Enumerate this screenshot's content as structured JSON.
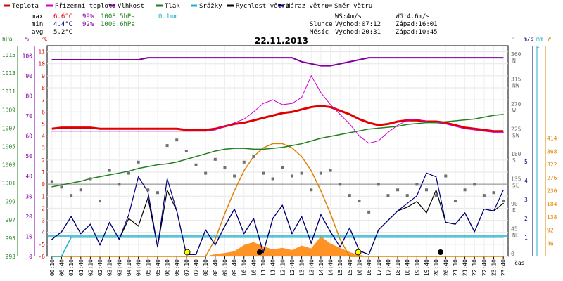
{
  "legend": [
    {
      "label": "Teplota",
      "color": "#e00000"
    },
    {
      "label": "Přízemní teplota",
      "color": "#d000d0"
    },
    {
      "label": "Vlhkost",
      "color": "#8000a0"
    },
    {
      "label": "Tlak",
      "color": "#208020"
    },
    {
      "label": "Srážky",
      "color": "#20b0c8"
    },
    {
      "label": "Rychlost větru",
      "color": "#000000"
    },
    {
      "label": "Náraz větru",
      "color": "#000080"
    },
    {
      "label": "Směr větru",
      "color": "#707070"
    }
  ],
  "stats": {
    "max_label": "max",
    "max_temp": "6.6°C",
    "max_hum": "99%",
    "max_press": "1008.5hPa",
    "max_rain": "0.1mm",
    "min_label": "min",
    "min_temp": "4.4°C",
    "min_hum": "92%",
    "min_press": "1000.6hPa",
    "avg_label": "avg",
    "avg_temp": "5.2°C"
  },
  "wind_summary": {
    "ws": "WS:4m/s",
    "wg": "WG:4.6m/s"
  },
  "sun": {
    "label": "Slunce",
    "rise": "Východ:07:12",
    "set": "Západ:16:01"
  },
  "moon": {
    "label": "Měsíc",
    "rise": "Východ:20:31",
    "set": "Západ:10:45"
  },
  "chart_data": {
    "type": "line",
    "title": "22.11.2013",
    "xlabel": "čas",
    "x_ticks": [
      "00:10",
      "00:40",
      "01:10",
      "01:40",
      "02:10",
      "02:40",
      "03:10",
      "03:40",
      "04:10",
      "04:40",
      "05:10",
      "05:40",
      "06:10",
      "06:40",
      "07:10",
      "07:40",
      "08:10",
      "08:40",
      "09:10",
      "09:40",
      "10:10",
      "10:40",
      "11:10",
      "11:40",
      "12:10",
      "12:40",
      "13:10",
      "13:40",
      "14:10",
      "14:40",
      "15:10",
      "15:40",
      "16:10",
      "16:40",
      "17:10",
      "17:40",
      "18:10",
      "18:40",
      "19:10",
      "19:40",
      "20:10",
      "20:40",
      "21:10",
      "21:40",
      "22:10",
      "22:40",
      "23:10",
      "23:40"
    ],
    "axes": {
      "hpa": {
        "unit": "hPa",
        "ticks": [
          "1015",
          "1013",
          "1011",
          "1009",
          "1007",
          "1005",
          "1003",
          "1001",
          "999",
          "997",
          "995",
          "993"
        ],
        "range": [
          993,
          1016
        ]
      },
      "pct": {
        "unit": "%",
        "ticks": [
          "100",
          "90",
          "80",
          "70",
          "60",
          "50",
          "40",
          "30",
          "20",
          "10",
          "0"
        ],
        "range": [
          0,
          105
        ]
      },
      "temp": {
        "unit": "°C",
        "ticks": [
          "11",
          "10",
          "9",
          "8",
          "7",
          "6",
          "5",
          "4",
          "3",
          "2",
          "1",
          "0",
          "-1",
          "-2",
          "-3",
          "-4",
          "-5",
          "-6"
        ],
        "range": [
          -6,
          11.5
        ]
      },
      "dir": {
        "unit": "°",
        "ticks": [
          "360",
          "315",
          "270",
          "225",
          "180",
          "135",
          "90",
          "45",
          "0"
        ],
        "labels": [
          "N",
          "NW",
          "W",
          "SW",
          "S",
          "SE",
          "E",
          "NE",
          ""
        ]
      },
      "ms": {
        "unit": "m/s",
        "ticks": [
          "5",
          "4",
          "3",
          "2",
          "1"
        ]
      },
      "mm": {
        "unit": "mm",
        "ticks": [
          "1"
        ]
      },
      "w": {
        "unit": "W",
        "ticks": [
          "414",
          "368",
          "322",
          "276",
          "230",
          "184",
          "138",
          "92",
          "46"
        ]
      }
    },
    "series": [
      {
        "name": "Teplota",
        "axis": "temp",
        "values": [
          4.6,
          4.7,
          4.7,
          4.7,
          4.7,
          4.6,
          4.6,
          4.6,
          4.6,
          4.6,
          4.6,
          4.6,
          4.6,
          4.6,
          4.5,
          4.5,
          4.5,
          4.6,
          4.8,
          5.0,
          5.1,
          5.3,
          5.5,
          5.7,
          5.9,
          6.0,
          6.2,
          6.4,
          6.5,
          6.4,
          6.1,
          5.8,
          5.4,
          5.1,
          4.9,
          5.0,
          5.2,
          5.3,
          5.3,
          5.2,
          5.2,
          5.1,
          4.9,
          4.7,
          4.6,
          4.5,
          4.4,
          4.4
        ]
      },
      {
        "name": "Přízemní teplota",
        "axis": "temp",
        "values": [
          4.4,
          4.4,
          4.4,
          4.4,
          4.4,
          4.4,
          4.4,
          4.4,
          4.4,
          4.4,
          4.4,
          4.4,
          4.4,
          4.4,
          4.4,
          4.4,
          4.4,
          4.5,
          4.8,
          5.1,
          5.4,
          6.0,
          6.7,
          7.0,
          6.6,
          6.7,
          7.2,
          9.0,
          7.6,
          6.6,
          5.8,
          5.0,
          4.0,
          3.4,
          3.6,
          4.3,
          4.9,
          5.3,
          5.4,
          5.2,
          5.1,
          5.0,
          4.8,
          4.6,
          4.5,
          4.4,
          4.3,
          4.3
        ]
      },
      {
        "name": "Vlhkost",
        "axis": "pct",
        "values": [
          98,
          98,
          98,
          98,
          98,
          98,
          98,
          98,
          98,
          98,
          99,
          99,
          99,
          99,
          99,
          99,
          99,
          99,
          99,
          99,
          99,
          99,
          99,
          99,
          99,
          99,
          97,
          96,
          95,
          95,
          96,
          97,
          98,
          99,
          99,
          99,
          99,
          99,
          99,
          99,
          99,
          99,
          99,
          99,
          99,
          99,
          99,
          99
        ]
      },
      {
        "name": "Tlak",
        "axis": "hpa",
        "values": [
          1000.6,
          1000.8,
          1001.0,
          1001.2,
          1001.5,
          1001.7,
          1001.9,
          1002.1,
          1002.3,
          1002.6,
          1002.8,
          1003.0,
          1003.1,
          1003.3,
          1003.6,
          1003.9,
          1004.2,
          1004.5,
          1004.7,
          1004.8,
          1004.8,
          1004.7,
          1004.7,
          1004.8,
          1004.9,
          1005.1,
          1005.3,
          1005.6,
          1005.9,
          1006.1,
          1006.3,
          1006.5,
          1006.7,
          1006.9,
          1007.0,
          1007.1,
          1007.2,
          1007.4,
          1007.5,
          1007.6,
          1007.6,
          1007.7,
          1007.8,
          1007.9,
          1008.0,
          1008.2,
          1008.4,
          1008.5
        ]
      },
      {
        "name": "Srážky",
        "axis": "mm",
        "values": [
          0,
          0,
          0.1,
          0.1,
          0.1,
          0.1,
          0.1,
          0.1,
          0.1,
          0.1,
          0.1,
          0.1,
          0.1,
          0.1,
          0.1,
          0.1,
          0.1,
          0.1,
          0.1,
          0.1,
          0.1,
          0.1,
          0.1,
          0.1,
          0.1,
          0.1,
          0.1,
          0.1,
          0.1,
          0.1,
          0.1,
          0.1,
          0.1,
          0.1,
          0.1,
          0.1,
          0.1,
          0.1,
          0.1,
          0.1,
          0.1,
          0.1,
          0.1,
          0.1,
          0.1,
          0.1,
          0.1,
          0.1
        ]
      },
      {
        "name": "Rychlost větru",
        "axis": "ms",
        "values": [
          0.9,
          1.3,
          2.1,
          1.2,
          1.7,
          0.6,
          1.8,
          0.9,
          2.0,
          1.6,
          3.1,
          0.5,
          3.5,
          2.4,
          0.1,
          0.1,
          1.4,
          0.6,
          1.6,
          2.5,
          1.2,
          2.0,
          0.2,
          2.0,
          2.7,
          1.2,
          2.1,
          0.7,
          2.2,
          1.3,
          0.5,
          1.5,
          0.3,
          0.1,
          1.4,
          1.9,
          2.4,
          2.6,
          2.9,
          2.3,
          3.5,
          1.8,
          1.7,
          2.3,
          1.3,
          2.5,
          2.4,
          2.8
        ]
      },
      {
        "name": "Náraz větru",
        "axis": "ms",
        "values": [
          0.9,
          1.3,
          2.1,
          1.2,
          1.7,
          0.6,
          1.8,
          0.9,
          2.2,
          4.2,
          3.4,
          0.5,
          4.1,
          2.4,
          0.1,
          0.1,
          1.4,
          0.6,
          1.6,
          2.5,
          1.2,
          2.0,
          0.2,
          2.0,
          2.7,
          1.2,
          2.1,
          0.7,
          2.2,
          1.3,
          0.5,
          1.5,
          0.3,
          0.1,
          1.4,
          1.9,
          2.4,
          2.8,
          3.2,
          4.4,
          4.2,
          1.8,
          1.7,
          2.3,
          1.3,
          2.5,
          2.4,
          3.5
        ]
      },
      {
        "name": "Směr větru",
        "axis": "dir",
        "values": [
          135,
          125,
          110,
          120,
          140,
          100,
          155,
          130,
          150,
          170,
          120,
          115,
          200,
          210,
          190,
          165,
          150,
          175,
          160,
          145,
          170,
          180,
          150,
          140,
          160,
          145,
          150,
          120,
          150,
          155,
          130,
          110,
          100,
          80,
          130,
          110,
          120,
          110,
          130,
          120,
          110,
          145,
          100,
          120,
          130,
          110,
          115,
          100
        ]
      }
    ],
    "solar_w": [
      0,
      0,
      0,
      0,
      0,
      0,
      0,
      0,
      0,
      0,
      0,
      0,
      0,
      0,
      0,
      0,
      0,
      8,
      12,
      18,
      40,
      50,
      35,
      25,
      30,
      22,
      38,
      28,
      70,
      45,
      30,
      15,
      5,
      0,
      0,
      0,
      0,
      0,
      0,
      0,
      0,
      0,
      0,
      0,
      0,
      0,
      0,
      0
    ],
    "sun_curve_w": [
      0,
      0,
      0,
      0,
      0,
      0,
      0,
      0,
      0,
      0,
      0,
      0,
      0,
      0,
      0,
      0,
      0,
      60,
      150,
      230,
      300,
      350,
      380,
      395,
      395,
      380,
      350,
      300,
      230,
      150,
      60,
      0,
      0,
      0,
      0,
      0,
      0,
      0,
      0,
      0,
      0,
      0,
      0,
      0,
      0,
      0,
      0,
      0
    ]
  }
}
